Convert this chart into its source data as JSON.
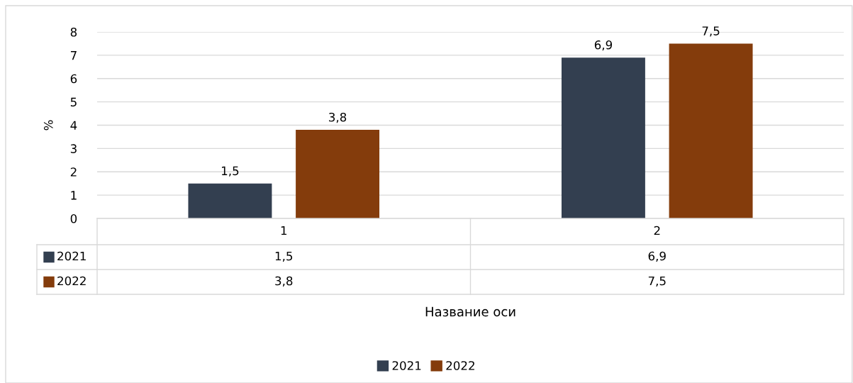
{
  "chart_data": {
    "type": "bar",
    "annotations": [
      "Название оси"
    ],
    "ylabel": "%",
    "categories": [
      "1",
      "2"
    ],
    "series": [
      {
        "name": "2021",
        "color": "#333f50",
        "values": [
          1.5,
          6.9
        ],
        "value_labels": [
          "1,5",
          "6,9"
        ]
      },
      {
        "name": "2022",
        "color": "#843c0c",
        "values": [
          3.8,
          7.5
        ],
        "value_labels": [
          "3,8",
          "7,5"
        ]
      }
    ],
    "ylim": [
      0,
      8
    ],
    "yticks": [
      0,
      1,
      2,
      3,
      4,
      5,
      6,
      7,
      8
    ],
    "grid": "y",
    "legend": "bottom"
  }
}
